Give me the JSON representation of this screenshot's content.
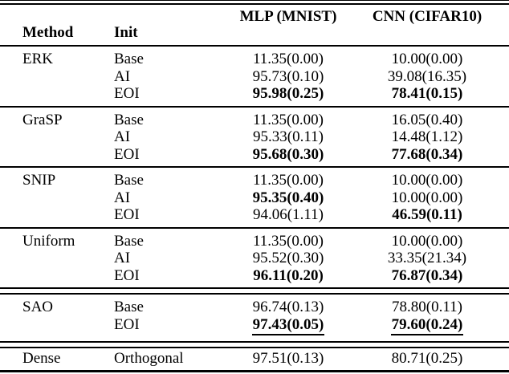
{
  "table": {
    "headers": {
      "method": "Method",
      "init": "Init",
      "mlp": "MLP (MNIST)",
      "cnn": "CNN (CIFAR10)"
    },
    "sections": [
      {
        "method": "ERK",
        "rule_above": "none",
        "rows": [
          {
            "init": "Base",
            "mlp": "11.35(0.00)",
            "mlp_style": "normal",
            "cnn": "10.00(0.00)",
            "cnn_style": "normal"
          },
          {
            "init": "AI",
            "mlp": "95.73(0.10)",
            "mlp_style": "normal",
            "cnn": "39.08(16.35)",
            "cnn_style": "normal"
          },
          {
            "init": "EOI",
            "mlp": "95.98(0.25)",
            "mlp_style": "bold",
            "cnn": "78.41(0.15)",
            "cnn_style": "bold"
          }
        ]
      },
      {
        "method": "GraSP",
        "rule_above": "single",
        "rows": [
          {
            "init": "Base",
            "mlp": "11.35(0.00)",
            "mlp_style": "normal",
            "cnn": "16.05(0.40)",
            "cnn_style": "normal"
          },
          {
            "init": "AI",
            "mlp": "95.33(0.11)",
            "mlp_style": "normal",
            "cnn": "14.48(1.12)",
            "cnn_style": "normal"
          },
          {
            "init": "EOI",
            "mlp": "95.68(0.30)",
            "mlp_style": "bold",
            "cnn": "77.68(0.34)",
            "cnn_style": "bold"
          }
        ]
      },
      {
        "method": "SNIP",
        "rule_above": "single",
        "rows": [
          {
            "init": "Base",
            "mlp": "11.35(0.00)",
            "mlp_style": "normal",
            "cnn": "10.00(0.00)",
            "cnn_style": "normal"
          },
          {
            "init": "AI",
            "mlp": "95.35(0.40)",
            "mlp_style": "bold",
            "cnn": "10.00(0.00)",
            "cnn_style": "normal"
          },
          {
            "init": "EOI",
            "mlp": "94.06(1.11)",
            "mlp_style": "normal",
            "cnn": "46.59(0.11)",
            "cnn_style": "bold"
          }
        ]
      },
      {
        "method": "Uniform",
        "rule_above": "single",
        "rows": [
          {
            "init": "Base",
            "mlp": "11.35(0.00)",
            "mlp_style": "normal",
            "cnn": "10.00(0.00)",
            "cnn_style": "normal"
          },
          {
            "init": "AI",
            "mlp": "95.52(0.30)",
            "mlp_style": "normal",
            "cnn": "33.35(21.34)",
            "cnn_style": "normal"
          },
          {
            "init": "EOI",
            "mlp": "96.11(0.20)",
            "mlp_style": "bold",
            "cnn": "76.87(0.34)",
            "cnn_style": "bold"
          }
        ]
      },
      {
        "method": "SAO",
        "rule_above": "double",
        "rows": [
          {
            "init": "Base",
            "mlp": "96.74(0.13)",
            "mlp_style": "normal",
            "cnn": "78.80(0.11)",
            "cnn_style": "normal"
          },
          {
            "init": "EOI",
            "mlp": "97.43(0.05)",
            "mlp_style": "bold-underline",
            "cnn": "79.60(0.24)",
            "cnn_style": "bold-underline"
          }
        ]
      },
      {
        "method": "Dense",
        "rule_above": "double",
        "rows": [
          {
            "init": "Orthogonal",
            "mlp": "97.51(0.13)",
            "mlp_style": "normal",
            "cnn": "80.71(0.25)",
            "cnn_style": "normal"
          }
        ]
      }
    ]
  }
}
